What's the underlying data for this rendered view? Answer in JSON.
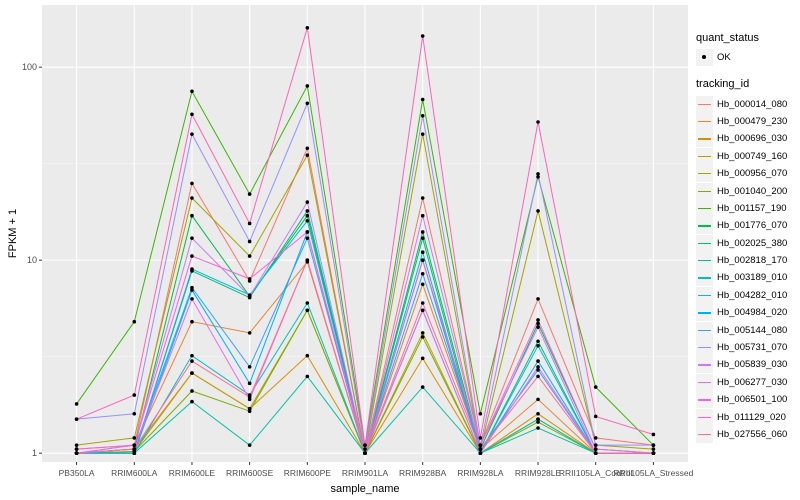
{
  "chart_data": {
    "type": "line",
    "xlabel": "sample_name",
    "ylabel": "FPKM + 1",
    "yscale": "log10",
    "ylim": [
      0.9,
      210
    ],
    "yticks": [
      1,
      10,
      100
    ],
    "ytick_labels": [
      "1",
      "10",
      "100"
    ],
    "grid": true,
    "legend_position": "right",
    "categories": [
      "PB350LA",
      "RRIM600LA",
      "RRIM600LE",
      "RRIM600SE",
      "RRIM600PE",
      "RRIM901LA",
      "RRIM928BA",
      "RRIM928LA",
      "RRIM928LE",
      "RRII105LA_Control",
      "RRII105LA_Stressed"
    ],
    "shape_legend": {
      "title": "quant_status",
      "entries": [
        "OK"
      ]
    },
    "color_legend_title": "tracking_id",
    "series": [
      {
        "name": "Hb_000014_080",
        "color": "#F8766D",
        "values": [
          1.05,
          1.1,
          25,
          7.8,
          38,
          1.0,
          21,
          1.1,
          6.3,
          1.2,
          1.1
        ]
      },
      {
        "name": "Hb_000479_230",
        "color": "#EA8331",
        "values": [
          1.0,
          1.1,
          4.8,
          4.2,
          9.8,
          1.0,
          7.5,
          1.05,
          1.9,
          1.0,
          1.0
        ]
      },
      {
        "name": "Hb_000696_030",
        "color": "#D89000",
        "values": [
          1.0,
          1.05,
          2.6,
          1.7,
          3.2,
          1.0,
          3.1,
          1.0,
          1.6,
          1.0,
          1.0
        ]
      },
      {
        "name": "Hb_000749_160",
        "color": "#C09B00",
        "values": [
          1.0,
          1.02,
          2.6,
          1.7,
          5.5,
          1.0,
          4.2,
          1.0,
          1.5,
          1.0,
          1.0
        ]
      },
      {
        "name": "Hb_000956_070",
        "color": "#A3A500",
        "values": [
          1.1,
          1.2,
          21,
          10.5,
          35,
          1.0,
          45,
          1.05,
          18,
          1.1,
          1.05
        ]
      },
      {
        "name": "Hb_001040_200",
        "color": "#7CAE00",
        "values": [
          1.0,
          1.02,
          2.1,
          1.65,
          5.5,
          1.0,
          4.0,
          1.0,
          1.45,
          1.0,
          1.0
        ]
      },
      {
        "name": "Hb_001157_190",
        "color": "#39B600",
        "values": [
          1.8,
          4.8,
          75,
          22,
          80,
          1.1,
          68,
          1.6,
          27,
          2.2,
          1.1
        ]
      },
      {
        "name": "Hb_001776_070",
        "color": "#00BB4E",
        "values": [
          1.0,
          1.05,
          17,
          6.5,
          17,
          1.0,
          14,
          1.05,
          4.7,
          1.05,
          1.0
        ]
      },
      {
        "name": "Hb_002025_380",
        "color": "#00BF7D",
        "values": [
          1.0,
          1.0,
          8.8,
          6.4,
          18,
          1.0,
          13,
          1.0,
          3.8,
          1.0,
          1.0
        ]
      },
      {
        "name": "Hb_002818_170",
        "color": "#00C1A3",
        "values": [
          1.0,
          1.0,
          1.85,
          1.1,
          2.5,
          1.0,
          2.2,
          1.0,
          1.35,
          1.0,
          1.0
        ]
      },
      {
        "name": "Hb_003189_010",
        "color": "#00BFC4",
        "values": [
          1.0,
          1.0,
          3.2,
          2.0,
          6.0,
          1.0,
          5.5,
          1.0,
          1.5,
          1.0,
          1.0
        ]
      },
      {
        "name": "Hb_004282_010",
        "color": "#00BAE0",
        "values": [
          1.0,
          1.0,
          9.0,
          6.6,
          16,
          1.0,
          11,
          1.0,
          3.6,
          1.0,
          1.0
        ]
      },
      {
        "name": "Hb_004984_020",
        "color": "#00B0F6",
        "values": [
          1.0,
          1.0,
          7.0,
          2.3,
          14,
          1.0,
          10,
          1.0,
          3.0,
          1.0,
          1.0
        ]
      },
      {
        "name": "Hb_005144_080",
        "color": "#35A2FF",
        "values": [
          1.0,
          1.05,
          7.2,
          2.8,
          13,
          1.0,
          8.5,
          1.05,
          2.7,
          1.0,
          1.0
        ]
      },
      {
        "name": "Hb_005731_070",
        "color": "#9590FF",
        "values": [
          1.5,
          1.6,
          45,
          12.5,
          65,
          1.05,
          56,
          1.1,
          28,
          1.1,
          1.1
        ]
      },
      {
        "name": "Hb_005839_030",
        "color": "#C77CFF",
        "values": [
          1.0,
          1.1,
          13,
          6.5,
          20,
          1.0,
          17,
          1.1,
          4.5,
          1.0,
          1.0
        ]
      },
      {
        "name": "Hb_006277_030",
        "color": "#E76BF3",
        "values": [
          1.0,
          1.05,
          6.3,
          1.9,
          10,
          1.0,
          5.5,
          1.0,
          2.8,
          1.0,
          1.0
        ]
      },
      {
        "name": "Hb_006501_100",
        "color": "#FA62DB",
        "values": [
          1.05,
          1.1,
          10.5,
          8.0,
          14,
          1.0,
          10,
          1.1,
          4.9,
          1.05,
          1.0
        ]
      },
      {
        "name": "Hb_011129_020",
        "color": "#FF62BC",
        "values": [
          1.5,
          2.0,
          57,
          15.5,
          160,
          1.1,
          145,
          1.2,
          52,
          1.55,
          1.25
        ]
      },
      {
        "name": "Hb_027556_060",
        "color": "#FF6C91",
        "values": [
          1.0,
          1.05,
          3.0,
          1.95,
          10,
          1.0,
          6.0,
          1.05,
          2.5,
          1.0,
          1.0
        ]
      }
    ]
  }
}
